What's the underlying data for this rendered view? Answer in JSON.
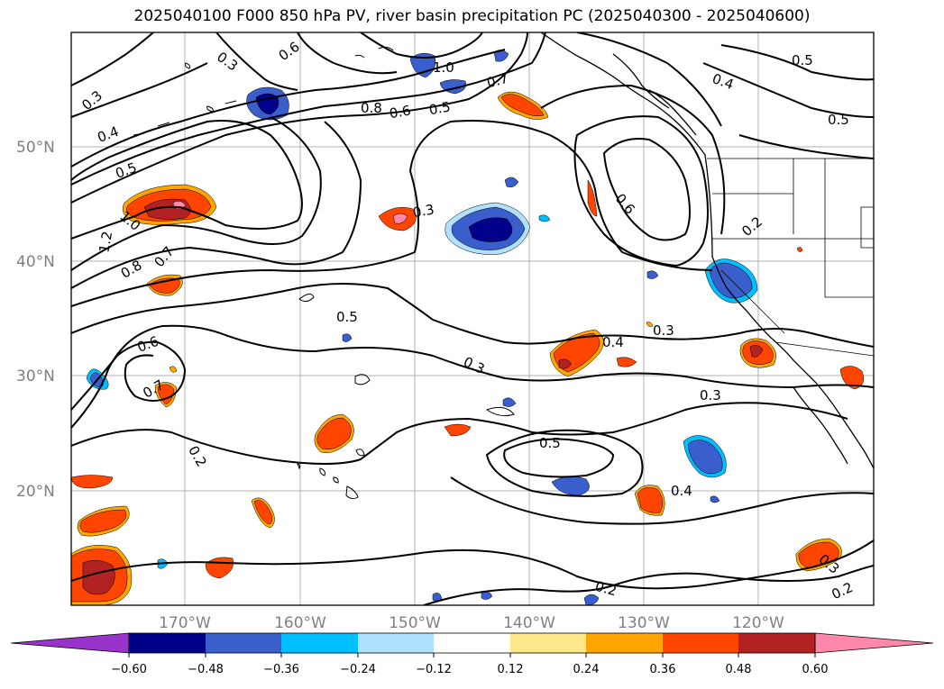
{
  "title": "2025040100 F000 850 hPa PV, river basin precipitation PC (2025040300 - 2025040600)",
  "latitude_labels": [
    "50°N",
    "40°N",
    "30°N",
    "20°N"
  ],
  "longitude_labels": [
    "170°W",
    "160°W",
    "150°W",
    "140°W",
    "130°W",
    "120°W"
  ],
  "contour_labels": [
    "0.3",
    "0.6",
    "1.0",
    "0.7",
    "0.5",
    "0.4",
    "0.5",
    "0.3",
    "0.4",
    "0.8",
    "0.6",
    "0.5",
    "0.5",
    "1.2",
    "1.0",
    "0.8",
    "0.7",
    "0.3",
    "0.6",
    "0.2",
    "0.5",
    "0.6",
    "0.7",
    "0.3",
    "0.4",
    "0.3",
    "0.3",
    "0.2",
    "0.5",
    "0.4",
    "0.3",
    "0.2",
    "0.2"
  ],
  "colorbar": {
    "tick_labels": [
      "−0.60",
      "−0.48",
      "−0.36",
      "−0.24",
      "−0.12",
      "0.12",
      "0.24",
      "0.36",
      "0.48",
      "0.60"
    ],
    "colors": [
      "#9933cc",
      "#00008b",
      "#3a5fcd",
      "#00bfff",
      "#b0e2ff",
      "#ffffff",
      "#ffe88c",
      "#ffa500",
      "#ff4500",
      "#b22222",
      "#ff88aa"
    ]
  }
}
